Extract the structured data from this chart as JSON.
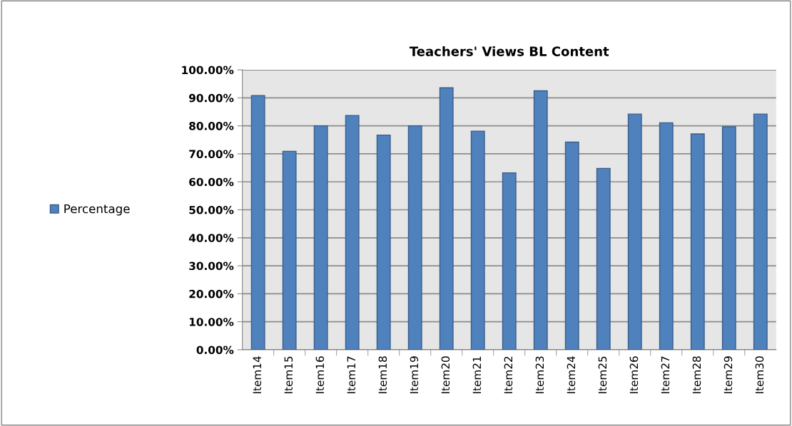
{
  "chart_data": {
    "type": "bar",
    "title": "Teachers' Views BL Content",
    "categories": [
      "Item14",
      "Item15",
      "Item16",
      "Item17",
      "Item18",
      "Item19",
      "Item20",
      "Item21",
      "Item22",
      "Item23",
      "Item24",
      "Item25",
      "Item26",
      "Item27",
      "Item28",
      "Item29",
      "Item30"
    ],
    "series": [
      {
        "name": "Percentage",
        "color": "#4f81bd",
        "values": [
          90.8,
          70.9,
          80.0,
          83.7,
          76.7,
          80.0,
          93.6,
          78.1,
          63.2,
          92.5,
          74.2,
          64.8,
          84.2,
          81.1,
          77.1,
          79.7,
          84.2
        ]
      }
    ],
    "ylim": [
      0,
      100
    ],
    "yticks": [
      {
        "value": 0,
        "label": "0.00%"
      },
      {
        "value": 10,
        "label": "10.00%"
      },
      {
        "value": 20,
        "label": "20.00%"
      },
      {
        "value": 30,
        "label": "30.00%"
      },
      {
        "value": 40,
        "label": "40.00%"
      },
      {
        "value": 50,
        "label": "50.00%"
      },
      {
        "value": 60,
        "label": "60.00%"
      },
      {
        "value": 70,
        "label": "70.00%"
      },
      {
        "value": 80,
        "label": "80.00%"
      },
      {
        "value": 90,
        "label": "90.00%"
      },
      {
        "value": 100,
        "label": "100.00%"
      }
    ],
    "grid": "y",
    "legend": "left"
  }
}
